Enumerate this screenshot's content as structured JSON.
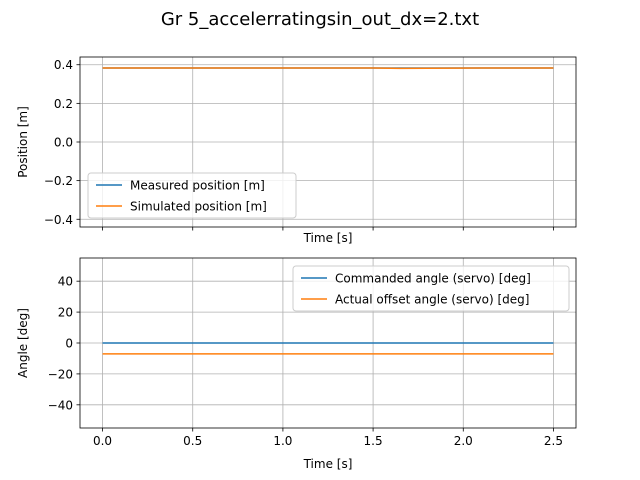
{
  "figure": {
    "title": "Gr 5_accelerratingsin_out_dx=2.txt"
  },
  "chart_data": [
    {
      "type": "line",
      "xlabel": "Time [s]",
      "ylabel": "Position [m]",
      "xlim": [
        -0.125,
        2.625
      ],
      "ylim": [
        -0.44,
        0.44
      ],
      "xticks": [
        0.0,
        0.5,
        1.0,
        1.5,
        2.0,
        2.5
      ],
      "xtick_labels_visible": false,
      "yticks": [
        -0.4,
        -0.2,
        0.0,
        0.2,
        0.4
      ],
      "ytick_labels": [
        "−0.4",
        "−0.2",
        "0.0",
        "0.2",
        "0.4"
      ],
      "grid": true,
      "legend_position": "lower-left",
      "series": [
        {
          "name": "Measured position [m]",
          "color": "#1f77b4",
          "x": [
            0.0,
            0.5,
            1.0,
            1.5,
            2.0,
            2.5
          ],
          "y": [
            0.383,
            0.383,
            0.383,
            0.383,
            0.383,
            0.383
          ]
        },
        {
          "name": "Simulated position [m]",
          "color": "#ff7f0e",
          "x": [
            0.0,
            0.5,
            1.0,
            1.5,
            1.65,
            2.1,
            2.5
          ],
          "y": [
            0.383,
            0.383,
            0.383,
            0.383,
            0.381,
            0.383,
            0.383
          ]
        }
      ]
    },
    {
      "type": "line",
      "xlabel": "Time [s]",
      "ylabel": "Angle [deg]",
      "xlim": [
        -0.125,
        2.625
      ],
      "ylim": [
        -55,
        55
      ],
      "xticks": [
        0.0,
        0.5,
        1.0,
        1.5,
        2.0,
        2.5
      ],
      "xtick_labels": [
        "0.0",
        "0.5",
        "1.0",
        "1.5",
        "2.0",
        "2.5"
      ],
      "xtick_labels_visible": true,
      "yticks": [
        -40,
        -20,
        0,
        20,
        40
      ],
      "ytick_labels": [
        "−40",
        "−20",
        "0",
        "20",
        "40"
      ],
      "grid": true,
      "legend_position": "upper-right",
      "series": [
        {
          "name": "Commanded angle (servo) [deg]",
          "color": "#1f77b4",
          "x": [
            0.0,
            2.5
          ],
          "y": [
            0.0,
            0.0
          ]
        },
        {
          "name": "Actual offset angle (servo) [deg]",
          "color": "#ff7f0e",
          "x": [
            0.0,
            2.5
          ],
          "y": [
            -7.0,
            -7.0
          ]
        }
      ]
    }
  ]
}
